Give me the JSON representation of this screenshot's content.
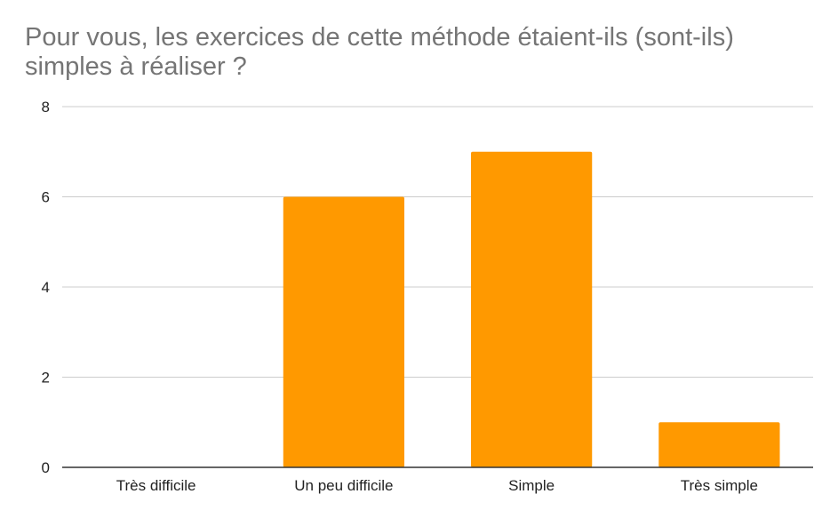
{
  "chart_data": {
    "type": "bar",
    "title": "Pour vous, les exercices de cette méthode étaient-ils (sont-ils) simples à réaliser ?",
    "categories": [
      "Très difficile",
      "Un peu difficile",
      "Simple",
      "Très simple"
    ],
    "values": [
      0,
      6,
      7,
      1
    ],
    "xlabel": "",
    "ylabel": "",
    "ylim": [
      0,
      8
    ],
    "yticks": [
      "0",
      "2",
      "4",
      "6",
      "8"
    ],
    "grid": true,
    "legend": "none",
    "colors": {
      "bar": "#ff9900",
      "grid": "#cccccc",
      "axis": "#333333",
      "title": "#757575",
      "tick_label": "#222222"
    }
  }
}
